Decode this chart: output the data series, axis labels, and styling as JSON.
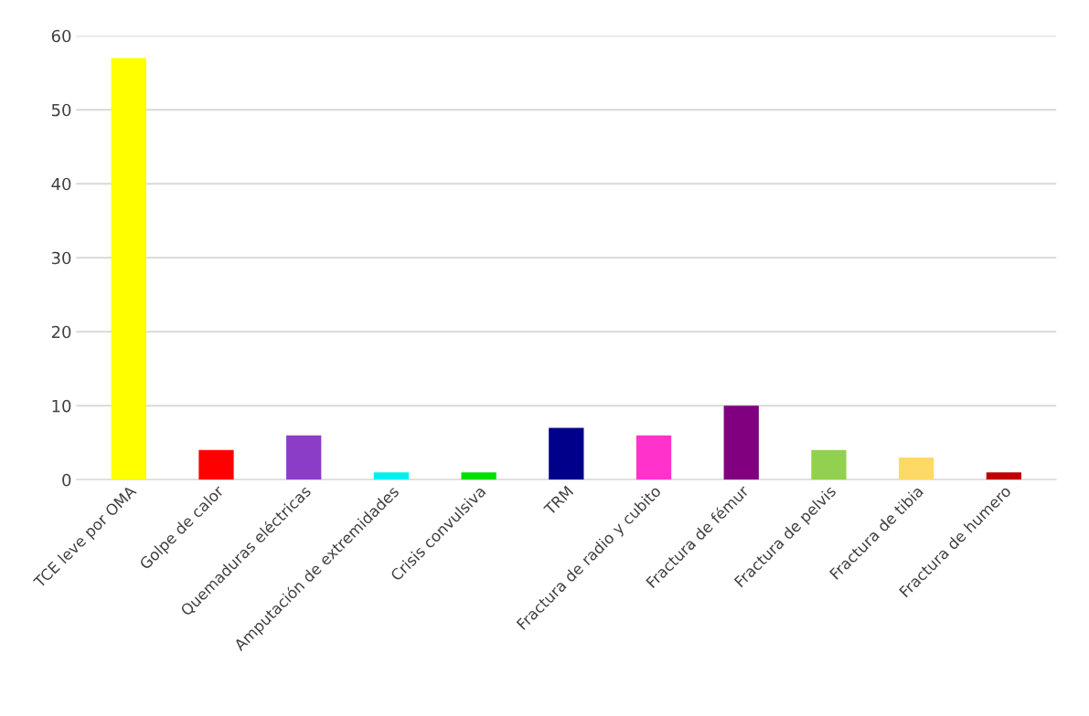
{
  "chart_data": {
    "type": "bar",
    "categories": [
      "TCE leve por OMA",
      "Golpe de calor",
      "Quemaduras eléctricas",
      "Amputación de extremidades",
      "Crisis convulsiva",
      "TRM",
      "Fractura de radio y cubito",
      "Fractura de fémur",
      "Fractura de pelvis",
      "Fractura de tibia",
      "Fractura de humero"
    ],
    "values": [
      57,
      4,
      6,
      1,
      1,
      7,
      6,
      10,
      4,
      3,
      1
    ],
    "colors": [
      "#ffff00",
      "#ff0000",
      "#8b3dc8",
      "#00f0f0",
      "#00e000",
      "#00008b",
      "#ff33cc",
      "#800080",
      "#92d050",
      "#ffd966",
      "#c00000"
    ],
    "ylim": [
      0,
      60
    ],
    "yticks": [
      0,
      10,
      20,
      30,
      40,
      50,
      60
    ],
    "grid": "y"
  }
}
